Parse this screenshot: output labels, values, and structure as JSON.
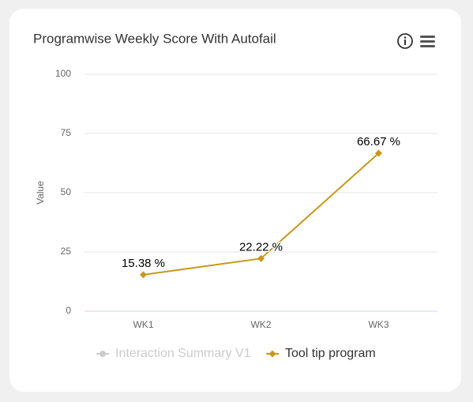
{
  "chart_data": {
    "type": "line",
    "title": "Programwise Weekly Score With Autofail",
    "ylabel": "Value",
    "categories": [
      "WK1",
      "WK2",
      "WK3"
    ],
    "series": [
      {
        "name": "Interaction Summary V1",
        "color": "#cccccc",
        "values": [
          null,
          null,
          null
        ],
        "hidden": true
      },
      {
        "name": "Tool tip program",
        "color": "#c9981b",
        "values": [
          15.38,
          22.22,
          66.67
        ],
        "value_labels": [
          "15.38 %",
          "22.22 %",
          "66.67 %"
        ]
      }
    ],
    "ylim": [
      0,
      100
    ],
    "yticks": [
      0,
      25,
      50,
      75,
      100
    ],
    "grid": true
  }
}
